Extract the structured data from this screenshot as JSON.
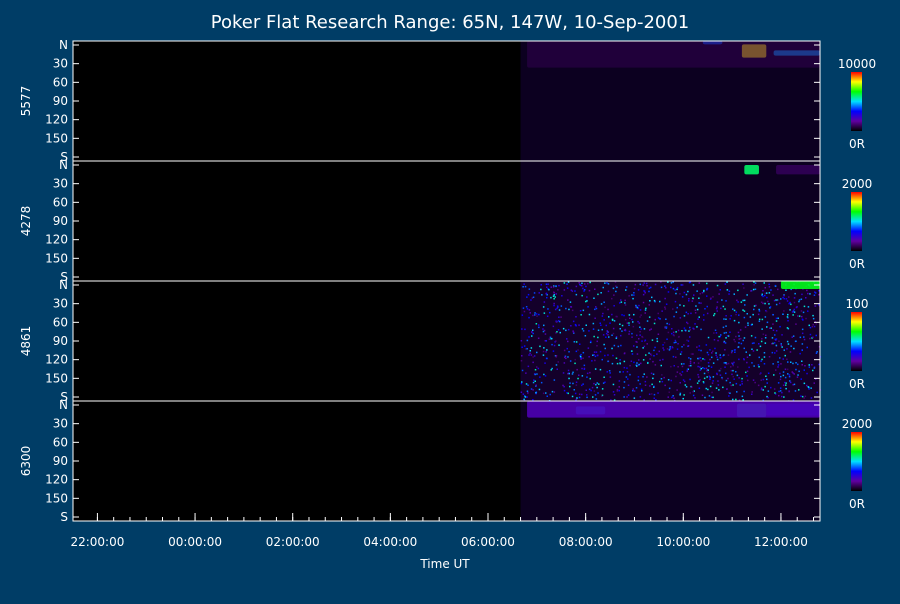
{
  "chart_data": {
    "type": "heatmap",
    "title": "Poker Flat Research Range: 65N, 147W, 10-Sep-2001",
    "xlabel": "Time UT",
    "x_ticks": [
      "22:00:00",
      "00:00:00",
      "02:00:00",
      "04:00:00",
      "06:00:00",
      "08:00:00",
      "10:00:00",
      "12:00:00"
    ],
    "y_ticks": [
      "N",
      "30",
      "60",
      "90",
      "120",
      "150",
      "S"
    ],
    "data_start_label": "06:40",
    "panels": [
      {
        "name": "5577",
        "colorbar_max": "10000",
        "colorbar_min": "0R",
        "features": [
          {
            "t0": 11.2,
            "t1": 11.7,
            "y0": 5,
            "y1": 25,
            "level": 0.85
          },
          {
            "t0": 11.85,
            "t1": 12.8,
            "y0": 14,
            "y1": 22,
            "level": 0.45
          },
          {
            "t0": 10.4,
            "t1": 10.8,
            "y0": 0,
            "y1": 5,
            "level": 0.4
          },
          {
            "t0": 6.8,
            "t1": 12.8,
            "y0": 0,
            "y1": 40,
            "level": 0.08
          }
        ]
      },
      {
        "name": "4278",
        "colorbar_max": "2000",
        "colorbar_min": "0R",
        "features": [
          {
            "t0": 11.25,
            "t1": 11.55,
            "y0": 6,
            "y1": 20,
            "level": 0.6
          },
          {
            "t0": 11.9,
            "t1": 12.8,
            "y0": 6,
            "y1": 20,
            "level": 0.12
          }
        ]
      },
      {
        "name": "4861",
        "colorbar_max": "100",
        "colorbar_min": "0R",
        "features": [
          {
            "t0": 12.0,
            "t1": 12.8,
            "y0": 0,
            "y1": 12,
            "level": 0.65
          }
        ]
      },
      {
        "name": "6300",
        "colorbar_max": "2000",
        "colorbar_min": "0R",
        "features": [
          {
            "t0": 7.8,
            "t1": 8.4,
            "y0": 8,
            "y1": 20,
            "level": 0.45
          },
          {
            "t0": 11.1,
            "t1": 11.7,
            "y0": 4,
            "y1": 24,
            "level": 0.55
          },
          {
            "t0": 11.7,
            "t1": 12.8,
            "y0": 4,
            "y1": 22,
            "level": 0.35
          },
          {
            "t0": 6.8,
            "t1": 12.8,
            "y0": 0,
            "y1": 25,
            "level": 0.2
          }
        ]
      }
    ],
    "colormap": [
      "#000000",
      "#6000a0",
      "#0000ff",
      "#00e0ff",
      "#00ff00",
      "#ffff00",
      "#ff0000"
    ]
  }
}
